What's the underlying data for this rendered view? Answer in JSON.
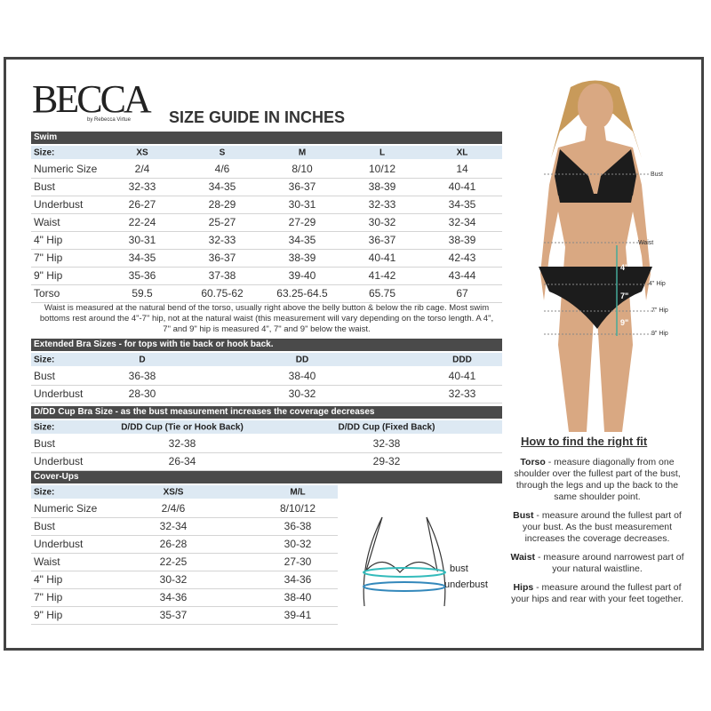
{
  "brand": {
    "logo": "BECCA",
    "tagline": "by Rebecca Virtue"
  },
  "title": "SIZE GUIDE IN INCHES",
  "tables": [
    {
      "heading": "Swim",
      "columns": [
        "Size:",
        "XS",
        "S",
        "M",
        "L",
        "XL"
      ],
      "rows": [
        [
          "Numeric Size",
          "2/4",
          "4/6",
          "8/10",
          "10/12",
          "14"
        ],
        [
          "Bust",
          "32-33",
          "34-35",
          "36-37",
          "38-39",
          "40-41"
        ],
        [
          "Underbust",
          "26-27",
          "28-29",
          "30-31",
          "32-33",
          "34-35"
        ],
        [
          "Waist",
          "22-24",
          "25-27",
          "27-29",
          "30-32",
          "32-34"
        ],
        [
          "4\" Hip",
          "30-31",
          "32-33",
          "34-35",
          "36-37",
          "38-39"
        ],
        [
          "7\" Hip",
          "34-35",
          "36-37",
          "38-39",
          "40-41",
          "42-43"
        ],
        [
          "9\" Hip",
          "35-36",
          "37-38",
          "39-40",
          "41-42",
          "43-44"
        ],
        [
          "Torso",
          "59.5",
          "60.75-62",
          "63.25-64.5",
          "65.75",
          "67"
        ]
      ],
      "note": "Waist is measured at the natural bend of the torso, usually right above the belly button & below the rib cage. Most swim bottoms rest around the 4\"-7\" hip, not at the natural waist (this measurement will vary depending on the torso length. A 4\", 7\" and 9\" hip is measured 4\", 7\" and 9\" below the waist."
    },
    {
      "heading": "Extended Bra Sizes - for tops with tie back or hook back.",
      "columns": [
        "Size:",
        "D",
        "DD",
        "DDD"
      ],
      "rows": [
        [
          "Bust",
          "36-38",
          "38-40",
          "40-41"
        ],
        [
          "Underbust",
          "28-30",
          "30-32",
          "32-33"
        ]
      ]
    },
    {
      "heading": "D/DD Cup Bra Size - as the bust measurement increases the coverage decreases",
      "columns": [
        "Size:",
        "D/DD Cup (Tie or Hook Back)",
        "D/DD Cup (Fixed Back)"
      ],
      "rows": [
        [
          "Bust",
          "32-38",
          "32-38"
        ],
        [
          "Underbust",
          "26-34",
          "29-32"
        ]
      ]
    },
    {
      "heading": "Cover-Ups",
      "columns": [
        "Size:",
        "XS/S",
        "M/L"
      ],
      "rows": [
        [
          "Numeric Size",
          "2/4/6",
          "8/10/12"
        ],
        [
          "Bust",
          "32-34",
          "36-38"
        ],
        [
          "Underbust",
          "26-28",
          "30-32"
        ],
        [
          "Waist",
          "22-25",
          "27-30"
        ],
        [
          "4\" Hip",
          "30-32",
          "34-36"
        ],
        [
          "7\" Hip",
          "34-36",
          "38-40"
        ],
        [
          "9\" Hip",
          "35-37",
          "39-41"
        ]
      ]
    }
  ],
  "model_labels": [
    "Bust",
    "Waist",
    "4\" Hip",
    "7\" Hip",
    "9\" Hip"
  ],
  "measure_marks": [
    "4\"",
    "7\"",
    "9\""
  ],
  "diagram_labels": [
    "bust",
    "underbust"
  ],
  "fit_guide": {
    "title": "How to find the right fit",
    "items": [
      {
        "term": "Torso",
        "text": " - measure diagonally from one shoulder over the fullest part of the bust, through the legs and up the back to the same shoulder point."
      },
      {
        "term": "Bust",
        "text": " - measure around the fullest part of your bust. As the bust measurement increases the coverage decreases."
      },
      {
        "term": "Waist",
        "text": " - measure around narrowest part of your natural waistline."
      },
      {
        "term": "Hips",
        "text": " - measure around the fullest part of your hips and rear with your feet together."
      }
    ]
  }
}
